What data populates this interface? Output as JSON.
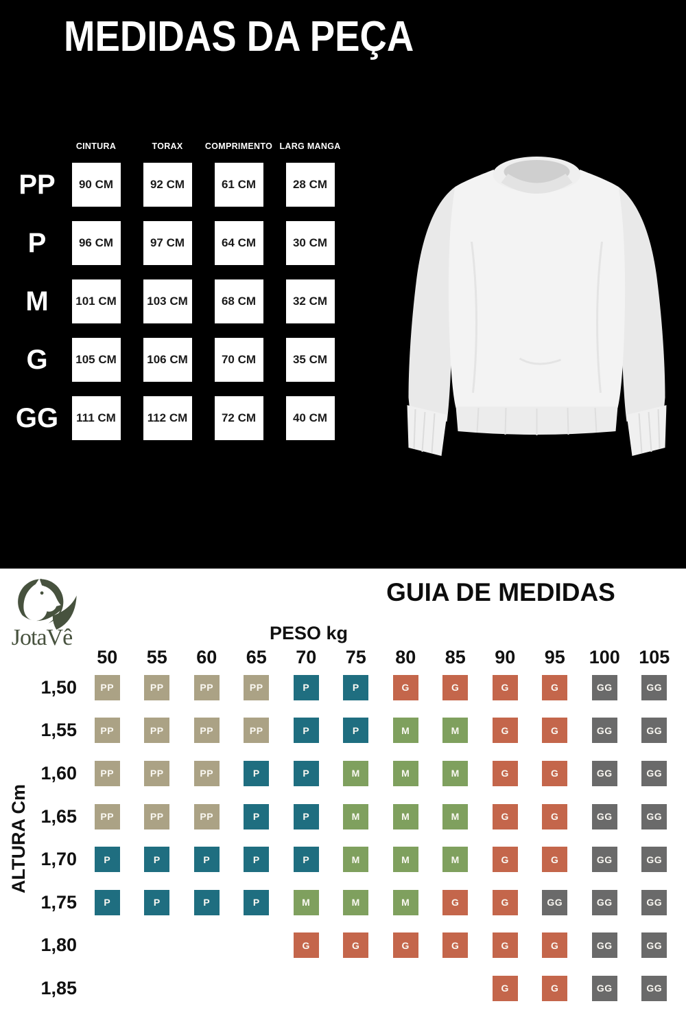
{
  "logo": {
    "brand": "JotaVê"
  },
  "chart_data": [
    {
      "type": "table",
      "title": "MEDIDAS DA PEÇA",
      "columns": [
        "CINTURA",
        "TORAX",
        "COMPRIMENTO",
        "LARG MANGA"
      ],
      "rows": [
        {
          "size": "PP",
          "values": [
            "90 CM",
            "92 CM",
            "61 CM",
            "28 CM"
          ]
        },
        {
          "size": "P",
          "values": [
            "96 CM",
            "97 CM",
            "64 CM",
            "30 CM"
          ]
        },
        {
          "size": "M",
          "values": [
            "101 CM",
            "103 CM",
            "68 CM",
            "32 CM"
          ]
        },
        {
          "size": "G",
          "values": [
            "105 CM",
            "106 CM",
            "70 CM",
            "35 CM"
          ]
        },
        {
          "size": "GG",
          "values": [
            "111 CM",
            "112 CM",
            "72 CM",
            "40 CM"
          ]
        }
      ]
    },
    {
      "type": "heatmap",
      "title": "GUIA DE MEDIDAS",
      "xlabel": "PESO kg",
      "ylabel": "ALTURA Cm",
      "x": [
        "50",
        "55",
        "60",
        "65",
        "70",
        "75",
        "80",
        "85",
        "90",
        "95",
        "100",
        "105"
      ],
      "y": [
        "1,50",
        "1,55",
        "1,60",
        "1,65",
        "1,70",
        "1,75",
        "1,80",
        "1,85"
      ],
      "values": [
        [
          "PP",
          "PP",
          "PP",
          "PP",
          "P",
          "P",
          "G",
          "G",
          "G",
          "G",
          "GG",
          "GG"
        ],
        [
          "PP",
          "PP",
          "PP",
          "PP",
          "P",
          "P",
          "M",
          "M",
          "G",
          "G",
          "GG",
          "GG"
        ],
        [
          "PP",
          "PP",
          "PP",
          "P",
          "P",
          "M",
          "M",
          "M",
          "G",
          "G",
          "GG",
          "GG"
        ],
        [
          "PP",
          "PP",
          "PP",
          "P",
          "P",
          "M",
          "M",
          "M",
          "G",
          "G",
          "GG",
          "GG"
        ],
        [
          "P",
          "P",
          "P",
          "P",
          "P",
          "M",
          "M",
          "M",
          "G",
          "G",
          "GG",
          "GG"
        ],
        [
          "P",
          "P",
          "P",
          "P",
          "M",
          "M",
          "M",
          "G",
          "G",
          "GG",
          "GG",
          "GG"
        ],
        [
          "",
          "",
          "",
          "",
          "G",
          "G",
          "G",
          "G",
          "G",
          "G",
          "GG",
          "GG"
        ],
        [
          "",
          "",
          "",
          "",
          "",
          "",
          "",
          "",
          "G",
          "G",
          "GG",
          "GG"
        ]
      ],
      "colors": {
        "PP": "#ABA285",
        "P": "#1F6E80",
        "M": "#7FA05E",
        "G": "#C4664B",
        "GG": "#6A6A6A"
      },
      "legend_position": "none",
      "grid": false
    }
  ]
}
